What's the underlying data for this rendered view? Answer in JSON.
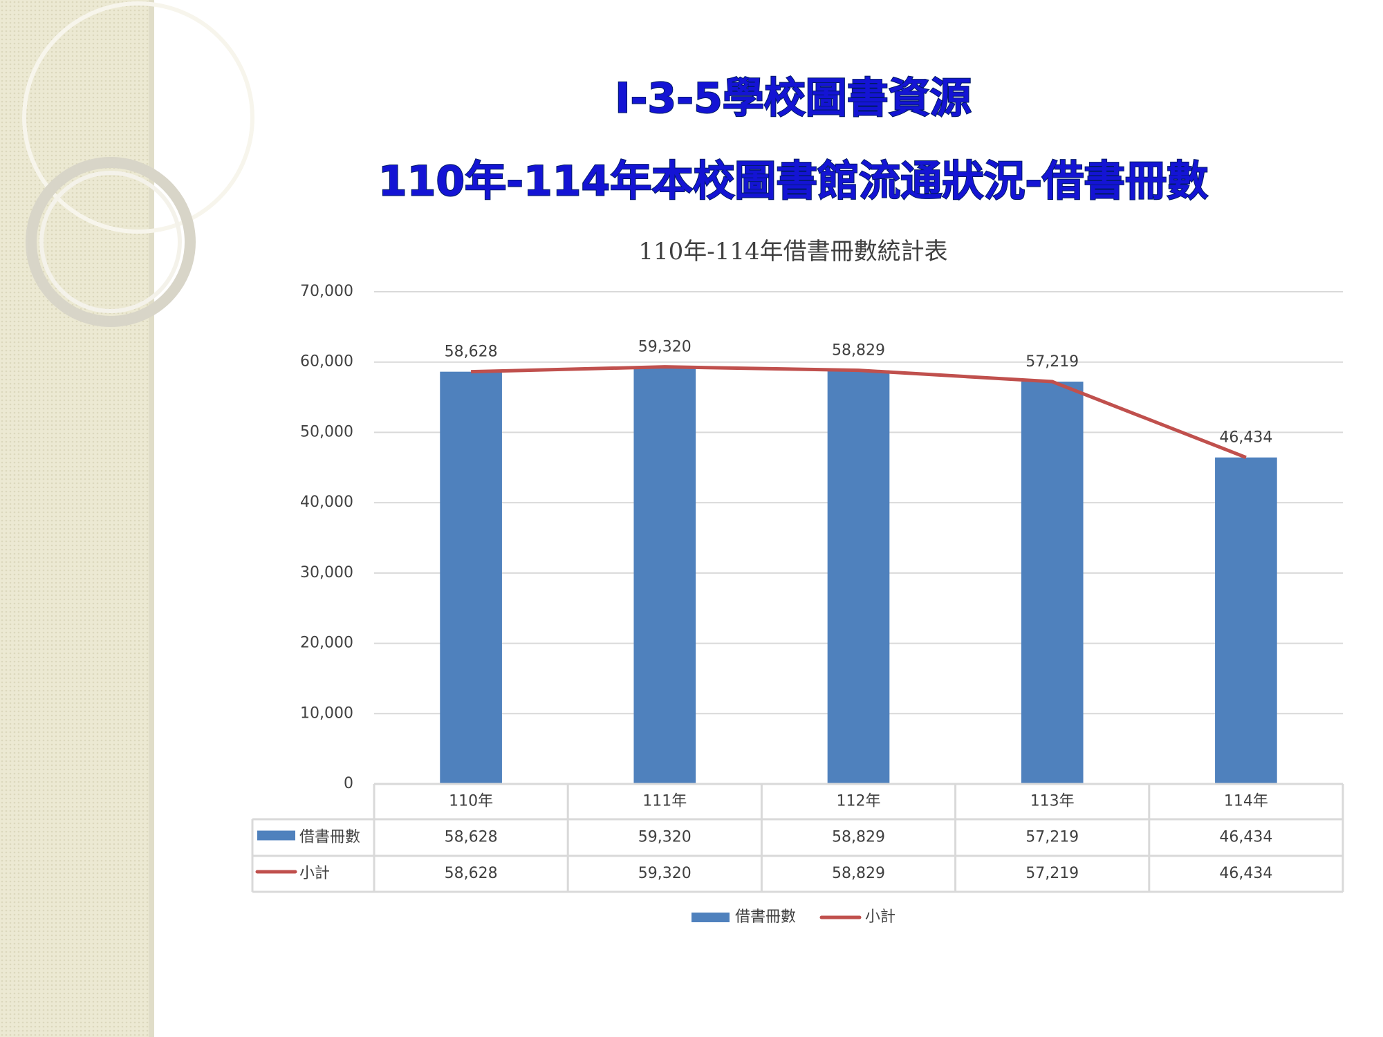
{
  "slide": {
    "title": "I-3-5學校圖書資源",
    "subtitle": "110年-114年本校圖書館流通狀況-借書冊數"
  },
  "chart_data": {
    "type": "bar-line",
    "title": "110年-114年借書冊數統計表",
    "categories": [
      "110年",
      "111年",
      "112年",
      "113年",
      "114年"
    ],
    "series": [
      {
        "name": "借書冊數",
        "type": "bar",
        "color": "#4f81bd",
        "values": [
          58628,
          59320,
          58829,
          57219,
          46434
        ],
        "value_labels": [
          "58,628",
          "59,320",
          "58,829",
          "57,219",
          "46,434"
        ]
      },
      {
        "name": "小計",
        "type": "line",
        "color": "#c0504d",
        "values": [
          58628,
          59320,
          58829,
          57219,
          46434
        ],
        "value_labels": [
          "58,628",
          "59,320",
          "58,829",
          "57,219",
          "46,434"
        ]
      }
    ],
    "ylim": [
      0,
      70000
    ],
    "yticks": [
      0,
      {
        "value": 10000,
        "label": "10,000"
      },
      {
        "value": 20000,
        "label": "20,000"
      },
      {
        "value": 30000,
        "label": "30,000"
      },
      {
        "value": 40000,
        "label": "40,000"
      },
      {
        "value": 50000,
        "label": "50,000"
      },
      {
        "value": 60000,
        "label": "60,000"
      },
      {
        "value": 70000,
        "label": "70,000"
      }
    ],
    "grid": true,
    "legend": "bottom",
    "data_table": true
  }
}
